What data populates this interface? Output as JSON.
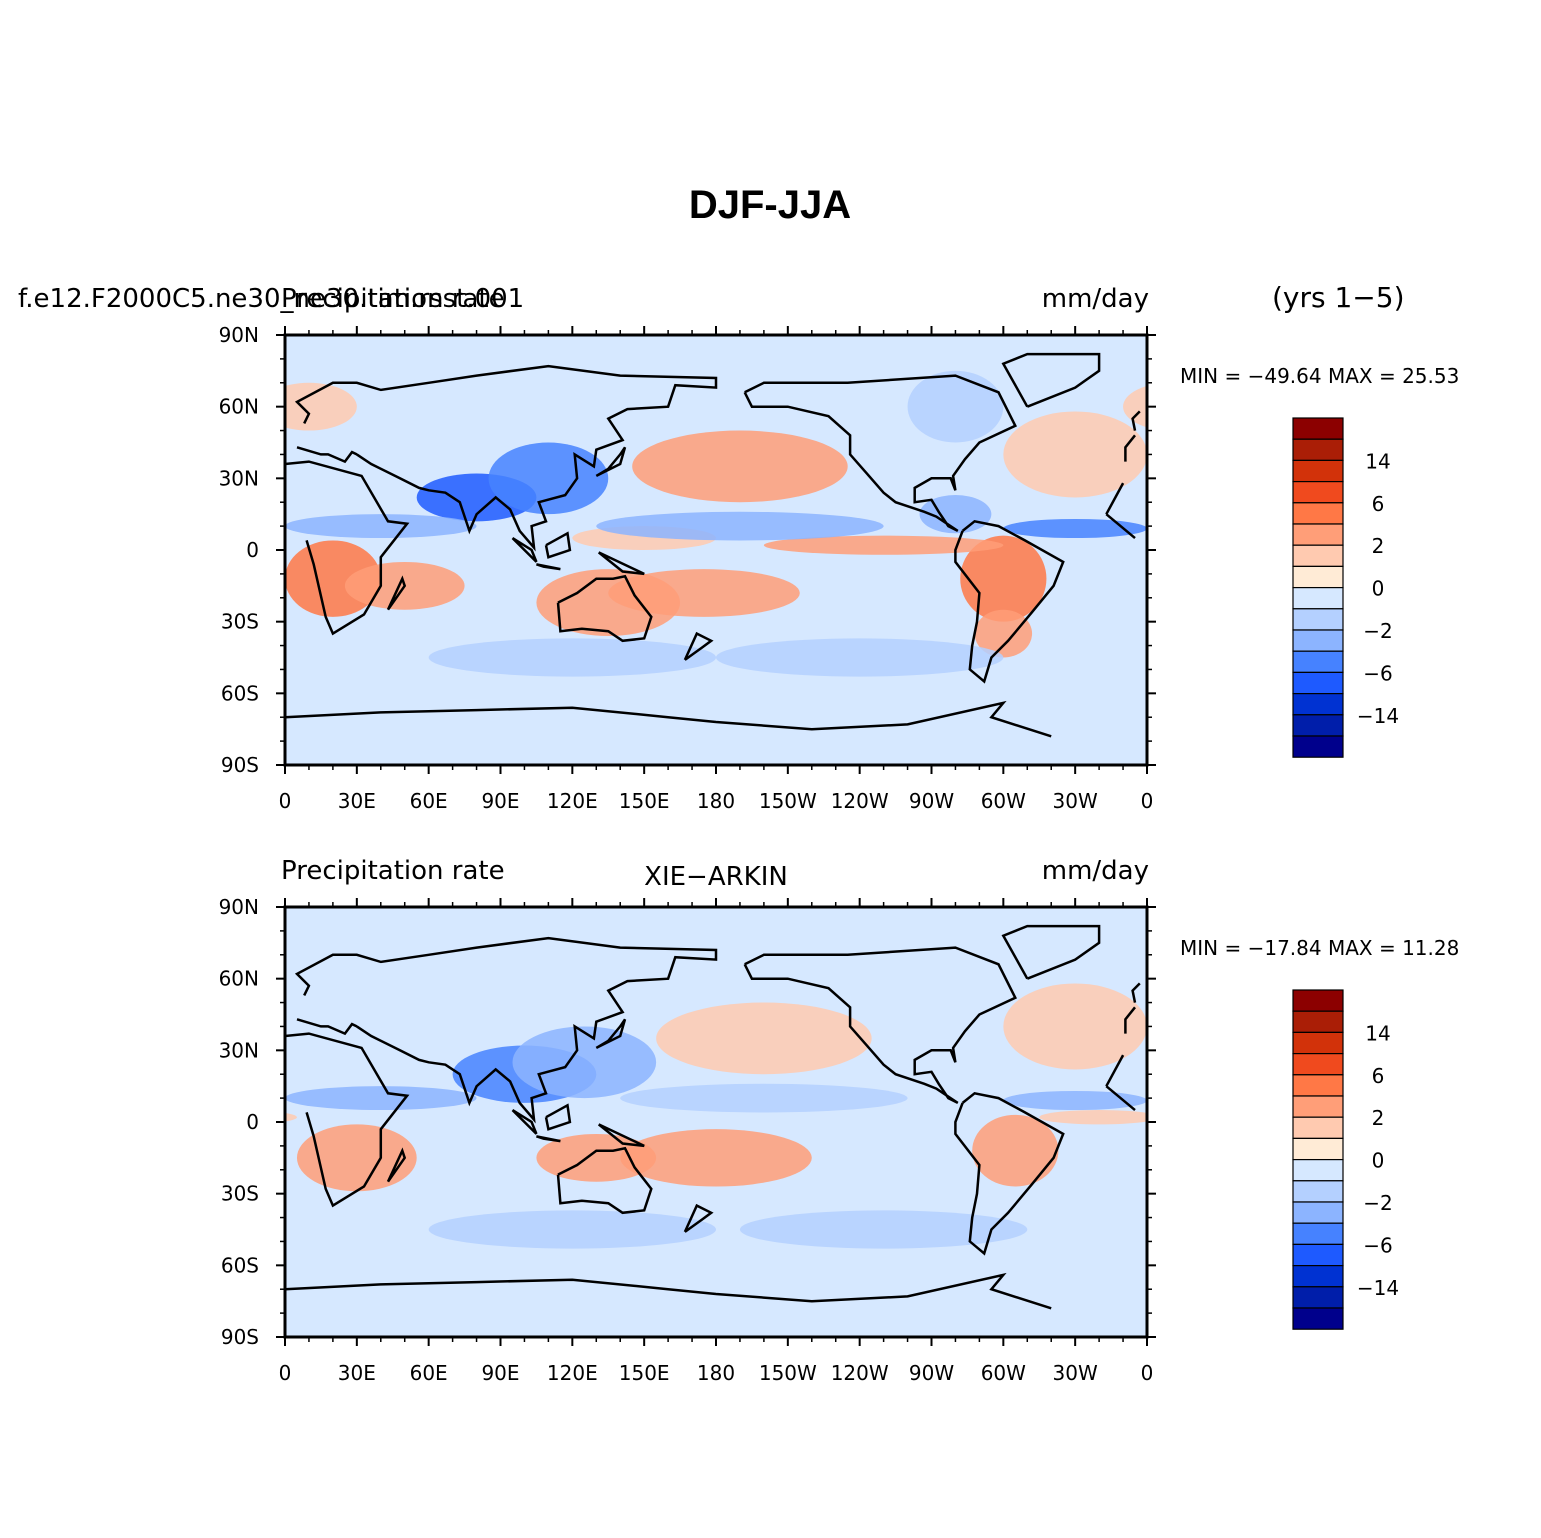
{
  "figure": {
    "title": "DJF-JJA",
    "years_label": "(yrs 1−5)"
  },
  "palette": [
    "#00008c",
    "#001eaa",
    "#0032d2",
    "#1e5aff",
    "#4682ff",
    "#8cb4ff",
    "#b4d0ff",
    "#d6e8ff",
    "#ffebd6",
    "#ffcab0",
    "#ff9e78",
    "#ff7846",
    "#f04a1e",
    "#d2320a",
    "#aa1e06",
    "#8c0000"
  ],
  "colorbar_labels": [
    "14",
    "6",
    "2",
    "0",
    "−2",
    "−6",
    "−14"
  ],
  "lon_labels": [
    "0",
    "30E",
    "60E",
    "90E",
    "120E",
    "150E",
    "180",
    "150W",
    "120W",
    "90W",
    "60W",
    "30W",
    "0"
  ],
  "lat_labels": [
    "90N",
    "60N",
    "30N",
    "0",
    "30S",
    "60S",
    "90S"
  ],
  "panels": [
    {
      "left_label": "f.e12.F2000C5.ne30_ne30.tim.rsst.001",
      "left_label_overlap": "Precipitation rate",
      "center_label": "",
      "units": "mm/day",
      "min_max": "MIN = −49.64 MAX =  25.53",
      "features": [
        {
          "lon": 20,
          "lat": -12,
          "v": 3,
          "w": 20,
          "h": 16
        },
        {
          "lon": 50,
          "lat": -15,
          "v": 2,
          "w": 25,
          "h": 10
        },
        {
          "lon": 135,
          "lat": -22,
          "v": 2,
          "w": 30,
          "h": 14
        },
        {
          "lon": 175,
          "lat": -18,
          "v": 2,
          "w": 40,
          "h": 10
        },
        {
          "lon": 300,
          "lat": -12,
          "v": 3,
          "w": 18,
          "h": 18
        },
        {
          "lon": 300,
          "lat": -35,
          "v": 2,
          "w": 12,
          "h": 10
        },
        {
          "lon": 190,
          "lat": 35,
          "v": 2,
          "w": 45,
          "h": 15
        },
        {
          "lon": 330,
          "lat": 40,
          "v": 1,
          "w": 30,
          "h": 18
        },
        {
          "lon": 10,
          "lat": 60,
          "v": 1,
          "w": 20,
          "h": 10
        },
        {
          "lon": 150,
          "lat": 5,
          "v": 1,
          "w": 30,
          "h": 5
        },
        {
          "lon": 250,
          "lat": 2,
          "v": 2,
          "w": 50,
          "h": 4
        },
        {
          "lon": 80,
          "lat": 22,
          "v": -4,
          "w": 25,
          "h": 10
        },
        {
          "lon": 110,
          "lat": 30,
          "v": -3,
          "w": 25,
          "h": 15
        },
        {
          "lon": 40,
          "lat": 10,
          "v": -2,
          "w": 40,
          "h": 5
        },
        {
          "lon": 190,
          "lat": 10,
          "v": -2,
          "w": 60,
          "h": 6
        },
        {
          "lon": 330,
          "lat": 9,
          "v": -3,
          "w": 30,
          "h": 4
        },
        {
          "lon": 280,
          "lat": 15,
          "v": -2,
          "w": 15,
          "h": 8
        },
        {
          "lon": 120,
          "lat": -45,
          "v": -1,
          "w": 60,
          "h": 8
        },
        {
          "lon": 240,
          "lat": -45,
          "v": -1,
          "w": 60,
          "h": 8
        },
        {
          "lon": 280,
          "lat": 60,
          "v": -1,
          "w": 20,
          "h": 15
        }
      ]
    },
    {
      "left_label": "Precipitation rate",
      "left_label_overlap": "",
      "center_label": "XIE−ARKIN",
      "units": "mm/day",
      "min_max": "MIN = −17.84 MAX =  11.28",
      "features": [
        {
          "lon": 30,
          "lat": -15,
          "v": 2,
          "w": 25,
          "h": 14
        },
        {
          "lon": 130,
          "lat": -15,
          "v": 2,
          "w": 25,
          "h": 10
        },
        {
          "lon": 180,
          "lat": -15,
          "v": 2,
          "w": 40,
          "h": 12
        },
        {
          "lon": 305,
          "lat": -12,
          "v": 2,
          "w": 18,
          "h": 15
        },
        {
          "lon": 200,
          "lat": 35,
          "v": 1,
          "w": 45,
          "h": 15
        },
        {
          "lon": 330,
          "lat": 40,
          "v": 1,
          "w": 30,
          "h": 18
        },
        {
          "lon": 340,
          "lat": 2,
          "v": 1,
          "w": 25,
          "h": 3
        },
        {
          "lon": 100,
          "lat": 20,
          "v": -3,
          "w": 30,
          "h": 12
        },
        {
          "lon": 125,
          "lat": 25,
          "v": -2,
          "w": 30,
          "h": 15
        },
        {
          "lon": 40,
          "lat": 10,
          "v": -2,
          "w": 40,
          "h": 5
        },
        {
          "lon": 200,
          "lat": 10,
          "v": -1,
          "w": 60,
          "h": 6
        },
        {
          "lon": 330,
          "lat": 9,
          "v": -2,
          "w": 30,
          "h": 4
        },
        {
          "lon": 120,
          "lat": -45,
          "v": -1,
          "w": 60,
          "h": 8
        },
        {
          "lon": 250,
          "lat": -45,
          "v": -1,
          "w": 60,
          "h": 8
        }
      ]
    }
  ]
}
